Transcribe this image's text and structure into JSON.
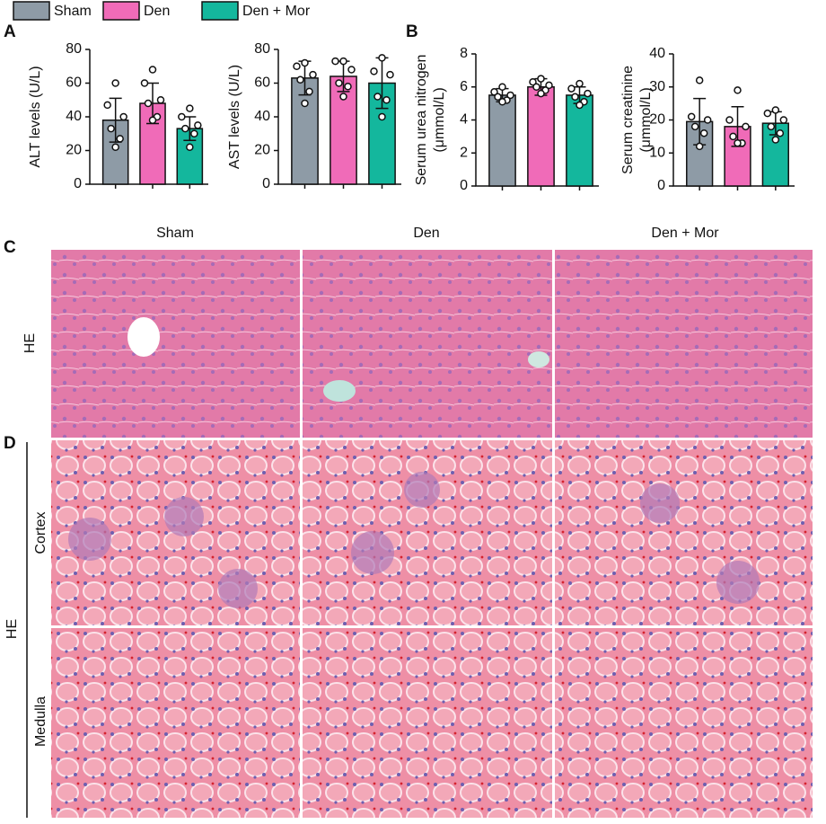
{
  "panels": [
    "A",
    "B",
    "C",
    "D"
  ],
  "legend": [
    {
      "name": "Sham",
      "color": "#8e9ba6"
    },
    {
      "name": "Den",
      "color": "#f06bb8"
    },
    {
      "name": "Den + Mor",
      "color": "#14b79d"
    }
  ],
  "chart_data": [
    {
      "type": "bar",
      "ylabel": [
        "ALT levels (U/L)"
      ],
      "ylim": [
        0,
        80
      ],
      "yticks": [
        0,
        20,
        40,
        60,
        80
      ],
      "values": [
        38,
        48,
        33
      ],
      "errors": [
        13,
        12,
        7
      ],
      "points": [
        [
          60,
          47,
          40,
          33,
          27,
          22
        ],
        [
          68,
          60,
          50,
          48,
          40,
          38
        ],
        [
          45,
          40,
          35,
          33,
          30,
          22
        ]
      ]
    },
    {
      "type": "bar",
      "ylabel": [
        "AST levels (U/L)"
      ],
      "ylim": [
        0,
        80
      ],
      "yticks": [
        0,
        20,
        40,
        60,
        80
      ],
      "values": [
        63,
        64,
        60
      ],
      "errors": [
        10,
        9,
        15
      ],
      "points": [
        [
          72,
          70,
          65,
          62,
          55,
          48
        ],
        [
          73,
          73,
          68,
          60,
          58,
          52
        ],
        [
          75,
          67,
          65,
          52,
          50,
          40
        ]
      ]
    },
    {
      "type": "bar",
      "ylabel": [
        "Serum urea nitrogen",
        "(μmmol/L)"
      ],
      "ylim": [
        0,
        8
      ],
      "yticks": [
        0,
        2,
        4,
        6,
        8
      ],
      "values": [
        5.5,
        6.0,
        5.5
      ],
      "errors": [
        0.4,
        0.5,
        0.5
      ],
      "points": [
        [
          6.0,
          5.7,
          5.5,
          5.4,
          5.2,
          5.1
        ],
        [
          6.5,
          6.3,
          6.1,
          6.0,
          5.8,
          5.6
        ],
        [
          6.2,
          5.9,
          5.6,
          5.4,
          5.1,
          4.9
        ]
      ]
    },
    {
      "type": "bar",
      "ylabel": [
        "Serum creatinine",
        "(μmmol/L)"
      ],
      "ylim": [
        0,
        40
      ],
      "yticks": [
        0,
        10,
        20,
        30,
        40
      ],
      "values": [
        19.5,
        18,
        19
      ],
      "errors": [
        7,
        6,
        3.5
      ],
      "points": [
        [
          32,
          21,
          20,
          18,
          16,
          12
        ],
        [
          29,
          20,
          18,
          15,
          13,
          13
        ],
        [
          23,
          22,
          20,
          18,
          16,
          14
        ]
      ]
    }
  ],
  "histology": {
    "columns": [
      "Sham",
      "Den",
      "Den + Mor"
    ],
    "liver_stain": "HE",
    "kidney_stain": "HE",
    "kidney_rows": [
      "Cortex",
      "Medulla"
    ]
  }
}
